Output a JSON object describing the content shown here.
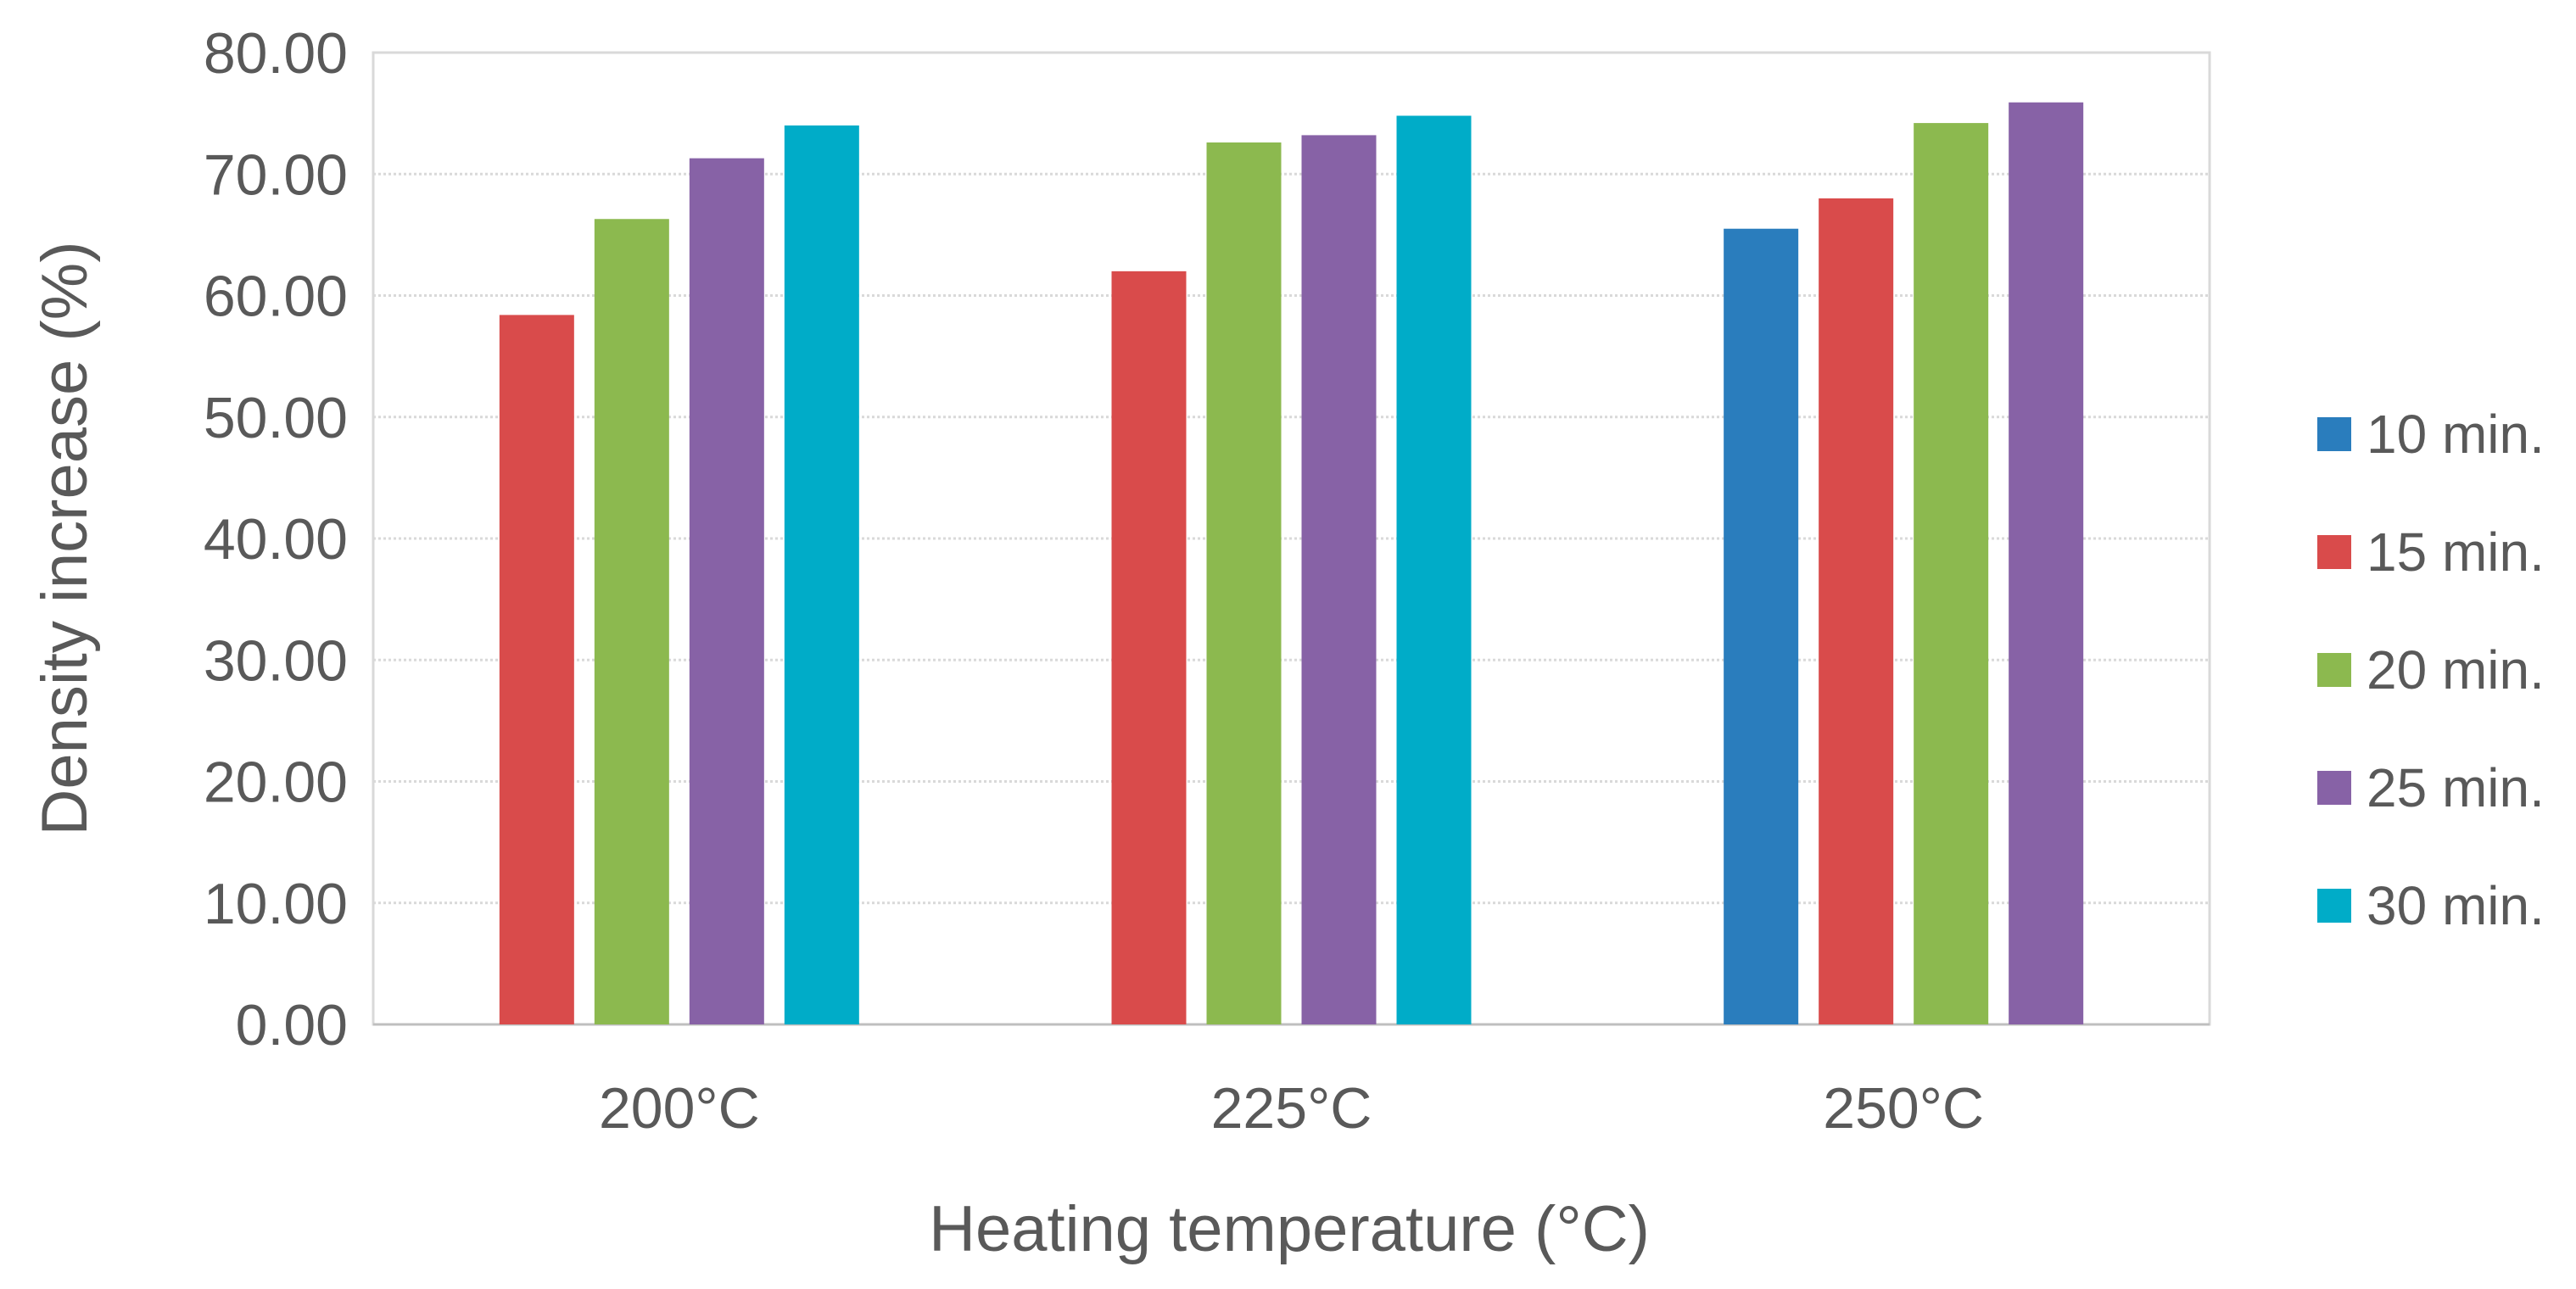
{
  "chart_data": {
    "type": "bar",
    "title": "",
    "xlabel": "Heating temperature (°C)",
    "ylabel": "Density increase (%)",
    "ylim": [
      0,
      80
    ],
    "y_ticks": [
      "0.00",
      "10.00",
      "20.00",
      "30.00",
      "40.00",
      "50.00",
      "60.00",
      "70.00",
      "80.00"
    ],
    "categories": [
      "200°C",
      "225°C",
      "250°C"
    ],
    "grid": true,
    "legend_position": "right",
    "series": [
      {
        "name": "10 min.",
        "color": "#2a7dbd",
        "values": [
          null,
          null,
          65.5
        ]
      },
      {
        "name": "15 min.",
        "color": "#d94b4b",
        "values": [
          58.4,
          62.0,
          68.0
        ]
      },
      {
        "name": "20 min.",
        "color": "#8cb94f",
        "values": [
          66.3,
          72.6,
          74.2
        ]
      },
      {
        "name": "25 min.",
        "color": "#8762a6",
        "values": [
          71.3,
          73.2,
          75.9
        ]
      },
      {
        "name": "30 min.",
        "color": "#00acc8",
        "values": [
          74.0,
          74.8,
          null
        ]
      }
    ]
  }
}
